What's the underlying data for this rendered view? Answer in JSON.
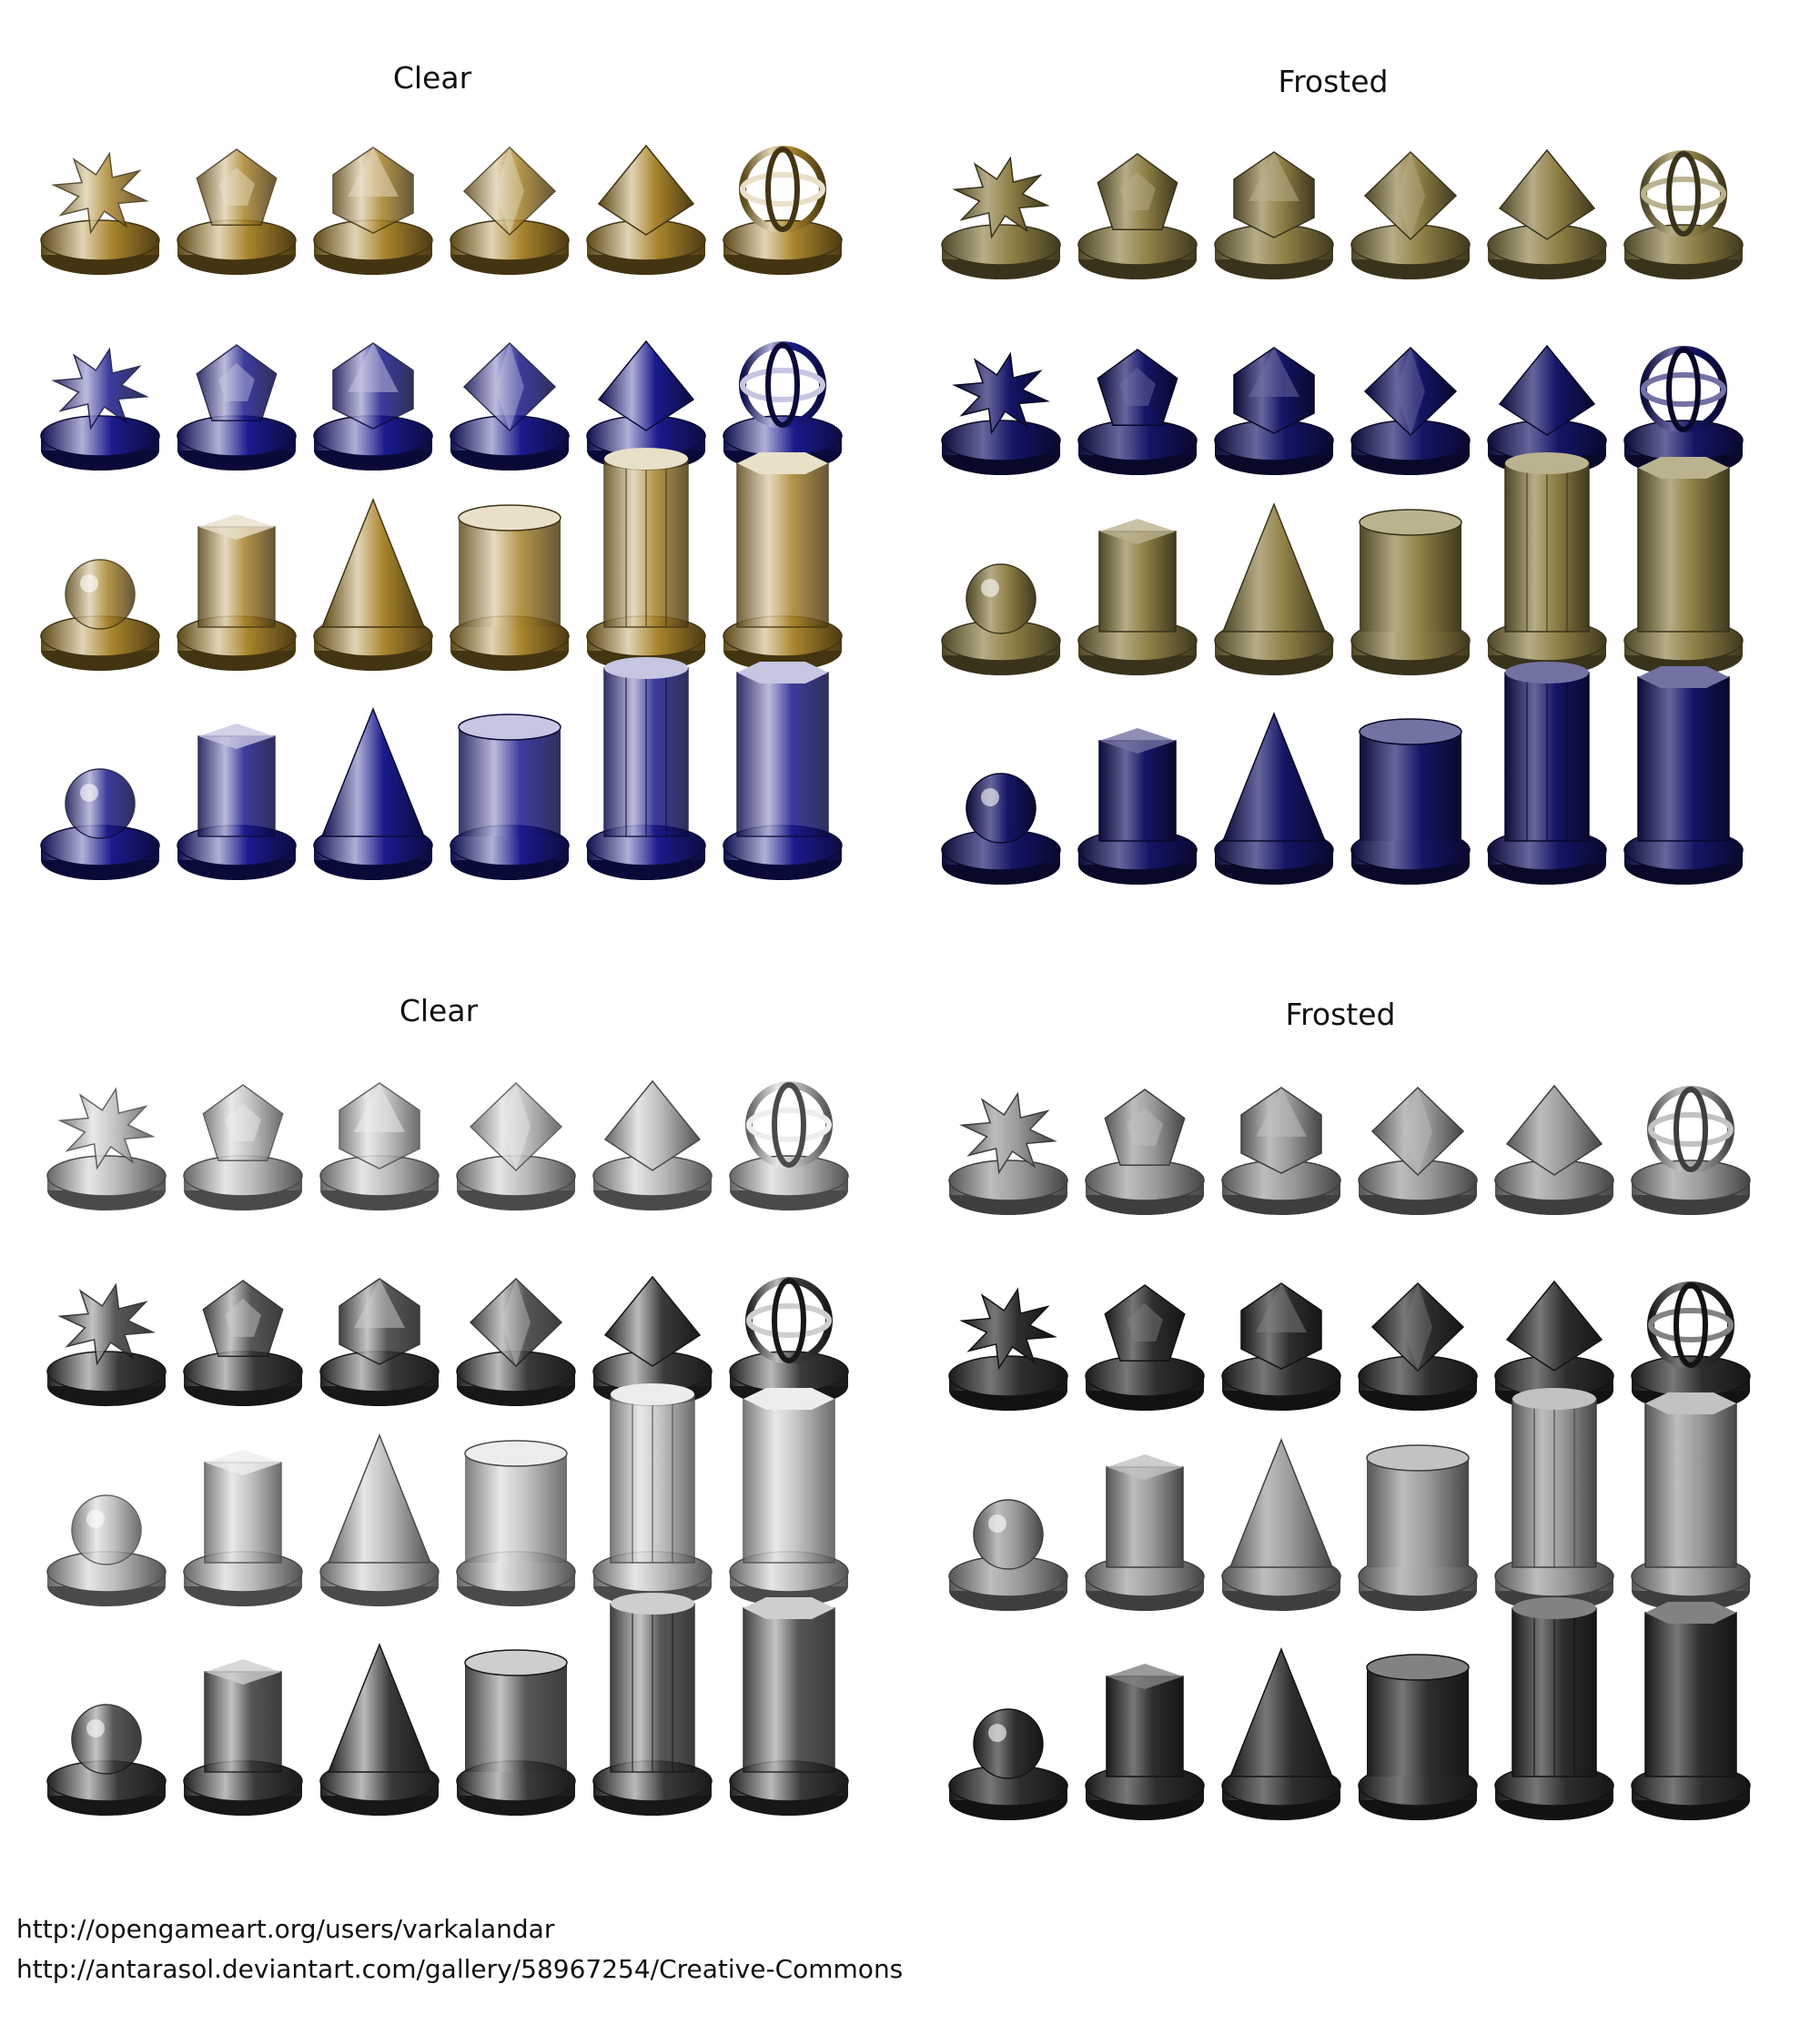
{
  "panels": [
    {
      "title": "Clear",
      "colors": [
        "#a8842c",
        "#1a1a8c"
      ],
      "finish": "clear"
    },
    {
      "title": "Frosted",
      "colors": [
        "#8e7f45",
        "#141466"
      ],
      "finish": "frosted"
    },
    {
      "title": "Clear",
      "colors": [
        "#b8b8b8",
        "#3a3a3a"
      ],
      "finish": "clear"
    },
    {
      "title": "Frosted",
      "colors": [
        "#9a9a9a",
        "#2e2e2e"
      ],
      "finish": "frosted"
    }
  ],
  "credits": [
    "http://opengameart.org/users/varkalandar",
    "http://antarasol.deviantart.com/gallery/58967254/Creative-Commons"
  ]
}
